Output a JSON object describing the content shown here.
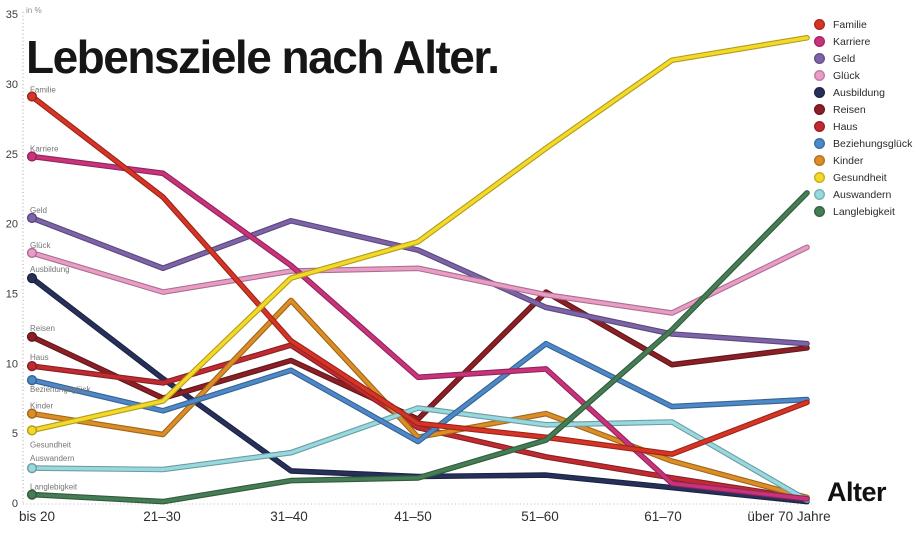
{
  "title": "Lebensziele nach Alter.",
  "axis": {
    "unit_label": "in %",
    "x_axis_label": "Alter",
    "y_ticks": [
      0,
      5,
      10,
      15,
      20,
      25,
      30,
      35
    ]
  },
  "chart_data": {
    "type": "line",
    "title": "Lebensziele nach Alter.",
    "xlabel": "Alter",
    "ylabel": "in %",
    "ylim": [
      0,
      35
    ],
    "grid": "dotted left axis and dotted baseline only",
    "legend_position": "top-right",
    "categories": [
      "bis 20",
      "21–30",
      "31–40",
      "41–50",
      "51–60",
      "61–70",
      "über 70 Jahre"
    ],
    "series": [
      {
        "name": "Familie",
        "color": "#d63425",
        "values": [
          29.1,
          21.9,
          11.6,
          5.7,
          4.7,
          3.5,
          7.2
        ]
      },
      {
        "name": "Karriere",
        "color": "#c9337c",
        "values": [
          24.8,
          23.6,
          17.0,
          9.0,
          9.6,
          1.4,
          0.3
        ]
      },
      {
        "name": "Geld",
        "color": "#7d64a9",
        "values": [
          20.4,
          16.8,
          20.2,
          18.1,
          14.0,
          12.1,
          11.4
        ]
      },
      {
        "name": "Glück",
        "color": "#ea9cc6",
        "values": [
          17.9,
          15.1,
          16.6,
          16.8,
          14.9,
          13.6,
          18.3
        ]
      },
      {
        "name": "Ausbildung",
        "color": "#27305a",
        "values": [
          16.1,
          8.9,
          2.3,
          1.9,
          2.0,
          1.1,
          0.1
        ]
      },
      {
        "name": "Reisen",
        "color": "#8a2025",
        "values": [
          11.9,
          7.5,
          10.2,
          6.0,
          15.1,
          9.9,
          11.1
        ]
      },
      {
        "name": "Haus",
        "color": "#bf2b31",
        "values": [
          9.8,
          8.6,
          11.3,
          5.4,
          3.3,
          1.8,
          0.3
        ]
      },
      {
        "name": "Beziehungsglück",
        "color": "#4d88c8",
        "values": [
          8.8,
          6.6,
          9.5,
          4.4,
          11.4,
          6.9,
          7.4
        ]
      },
      {
        "name": "Kinder",
        "color": "#dc8d26",
        "values": [
          6.4,
          4.9,
          14.5,
          4.7,
          6.4,
          3.0,
          0.4
        ]
      },
      {
        "name": "Gesundheit",
        "color": "#f4d928",
        "values": [
          5.2,
          7.3,
          16.1,
          18.7,
          25.4,
          31.7,
          33.3
        ]
      },
      {
        "name": "Auswandern",
        "color": "#98d9e0",
        "values": [
          2.5,
          2.4,
          3.6,
          6.8,
          5.6,
          5.8,
          0.2
        ]
      },
      {
        "name": "Langlebigkeit",
        "color": "#457d54",
        "values": [
          0.6,
          0.1,
          1.6,
          1.8,
          4.5,
          12.4,
          22.2
        ]
      }
    ]
  }
}
